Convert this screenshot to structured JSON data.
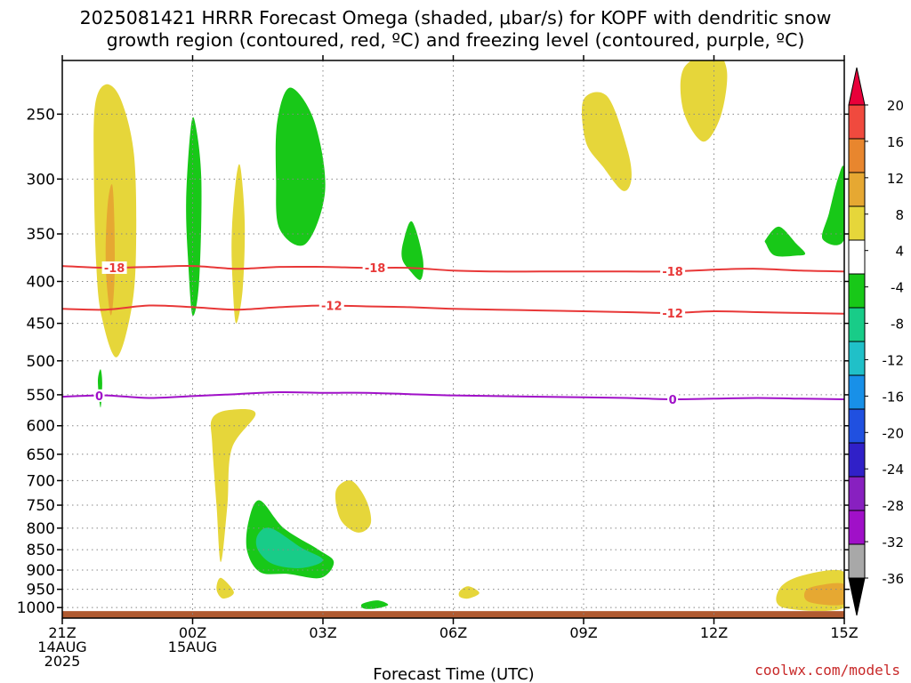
{
  "title_line1": "2025081421 HRRR Forecast Omega (shaded, μbar/s) for KOPF with dendritic snow",
  "title_line2": "growth region (contoured, red, ºC) and freezing level (contoured, purple, ºC)",
  "credit": "coolwx.com/models",
  "chart_data": {
    "type": "contour",
    "xlabel": "Forecast Time (UTC)",
    "ylabel": "",
    "x_range_hours": [
      0,
      18
    ],
    "y_range_mb": [
      215,
      1030
    ],
    "y_scale": "log",
    "grid": true,
    "y_ticks": [
      250,
      300,
      350,
      400,
      450,
      500,
      550,
      600,
      650,
      700,
      750,
      800,
      850,
      900,
      950,
      1000
    ],
    "x_ticks": [
      {
        "hour": 0,
        "lines": [
          "21Z",
          "14AUG",
          "2025"
        ]
      },
      {
        "hour": 3,
        "lines": [
          "00Z",
          "15AUG"
        ]
      },
      {
        "hour": 6,
        "lines": [
          "03Z"
        ]
      },
      {
        "hour": 9,
        "lines": [
          "06Z"
        ]
      },
      {
        "hour": 12,
        "lines": [
          "09Z"
        ]
      },
      {
        "hour": 15,
        "lines": [
          "12Z"
        ]
      },
      {
        "hour": 18,
        "lines": [
          "15Z"
        ]
      }
    ],
    "colorbar": {
      "levels": [
        "20",
        "16",
        "12",
        "8",
        "4",
        "-4",
        "-8",
        "-12",
        "-16",
        "-20",
        "-24",
        "-28",
        "-32",
        "-36"
      ],
      "colors": [
        "#e8003a",
        "#f04a3e",
        "#e8862e",
        "#e6a832",
        "#e6d63a",
        "#ffffff",
        "#18c818",
        "#18cc88",
        "#20c0c8",
        "#1890e8",
        "#2050e0",
        "#3020c8",
        "#8820c0",
        "#a010c8",
        "#a8a8a8",
        "#000000"
      ]
    },
    "omega_regions": [
      {
        "color": "#e6d63a",
        "pts": [
          [
            0.75,
            245
          ],
          [
            1.0,
            230
          ],
          [
            1.35,
            240
          ],
          [
            1.65,
            280
          ],
          [
            1.7,
            360
          ],
          [
            1.6,
            430
          ],
          [
            1.25,
            495
          ],
          [
            0.9,
            440
          ],
          [
            0.78,
            380
          ],
          [
            0.73,
            300
          ]
        ]
      },
      {
        "color": "#e6a832",
        "pts": [
          [
            1.05,
            320
          ],
          [
            1.15,
            305
          ],
          [
            1.2,
            340
          ],
          [
            1.2,
            400
          ],
          [
            1.12,
            440
          ],
          [
            1.02,
            400
          ],
          [
            1.0,
            360
          ]
        ]
      },
      {
        "color": "#18c818",
        "pts": [
          [
            0.82,
            530
          ],
          [
            0.88,
            512
          ],
          [
            0.92,
            532
          ],
          [
            0.88,
            570
          ]
        ]
      },
      {
        "color": "#18c818",
        "pts": [
          [
            2.95,
            262
          ],
          [
            3.05,
            255
          ],
          [
            3.2,
            300
          ],
          [
            3.15,
            400
          ],
          [
            3.0,
            440
          ],
          [
            2.9,
            380
          ],
          [
            2.85,
            320
          ]
        ]
      },
      {
        "color": "#e6d63a",
        "pts": [
          [
            4.0,
            300
          ],
          [
            4.1,
            290
          ],
          [
            4.2,
            340
          ],
          [
            4.15,
            410
          ],
          [
            4.0,
            450
          ],
          [
            3.92,
            400
          ],
          [
            3.9,
            350
          ]
        ]
      },
      {
        "color": "#18c818",
        "pts": [
          [
            4.95,
            255
          ],
          [
            5.25,
            232
          ],
          [
            5.8,
            255
          ],
          [
            6.05,
            310
          ],
          [
            5.6,
            360
          ],
          [
            5.0,
            345
          ],
          [
            4.92,
            300
          ]
        ]
      },
      {
        "color": "#18c818",
        "pts": [
          [
            7.85,
            358
          ],
          [
            8.05,
            338
          ],
          [
            8.3,
            375
          ],
          [
            8.25,
            398
          ],
          [
            8.0,
            388
          ],
          [
            7.82,
            375
          ]
        ]
      },
      {
        "color": "#e6d63a",
        "pts": [
          [
            12.0,
            240
          ],
          [
            12.55,
            238
          ],
          [
            13.0,
            275
          ],
          [
            13.1,
            300
          ],
          [
            12.9,
            310
          ],
          [
            12.45,
            290
          ],
          [
            12.05,
            270
          ]
        ]
      },
      {
        "color": "#e6d63a",
        "pts": [
          [
            14.3,
            220
          ],
          [
            15.0,
            210
          ],
          [
            15.3,
            222
          ],
          [
            15.15,
            252
          ],
          [
            14.75,
            270
          ],
          [
            14.3,
            248
          ]
        ]
      },
      {
        "color": "#18c818",
        "pts": [
          [
            16.2,
            355
          ],
          [
            16.5,
            343
          ],
          [
            16.9,
            360
          ],
          [
            17.1,
            370
          ],
          [
            16.9,
            372
          ],
          [
            16.4,
            372
          ],
          [
            16.2,
            360
          ]
        ]
      },
      {
        "color": "#18c818",
        "pts": [
          [
            17.5,
            355
          ],
          [
            17.65,
            330
          ],
          [
            17.85,
            300
          ],
          [
            18.0,
            292
          ],
          [
            18.0,
            355
          ]
        ]
      },
      {
        "color": "#e6d63a",
        "pts": [
          [
            3.45,
            588
          ],
          [
            3.85,
            574
          ],
          [
            4.45,
            580
          ],
          [
            3.9,
            640
          ],
          [
            3.8,
            750
          ],
          [
            3.65,
            880
          ],
          [
            3.55,
            750
          ],
          [
            3.45,
            630
          ]
        ]
      },
      {
        "color": "#e6d63a",
        "pts": [
          [
            3.55,
            950
          ],
          [
            3.65,
            920
          ],
          [
            3.95,
            958
          ],
          [
            3.7,
            975
          ]
        ]
      },
      {
        "color": "#e6d63a",
        "pts": [
          [
            6.3,
            720
          ],
          [
            6.65,
            700
          ],
          [
            7.0,
            740
          ],
          [
            7.1,
            790
          ],
          [
            6.8,
            810
          ],
          [
            6.4,
            780
          ]
        ]
      },
      {
        "color": "#18c818",
        "pts": [
          [
            4.3,
            780
          ],
          [
            4.55,
            740
          ],
          [
            5.1,
            800
          ],
          [
            5.9,
            850
          ],
          [
            6.25,
            880
          ],
          [
            5.95,
            920
          ],
          [
            5.2,
            910
          ],
          [
            4.55,
            905
          ],
          [
            4.25,
            850
          ]
        ]
      },
      {
        "color": "#18cc88",
        "pts": [
          [
            4.5,
            815
          ],
          [
            4.8,
            800
          ],
          [
            5.5,
            845
          ],
          [
            6.0,
            875
          ],
          [
            5.5,
            895
          ],
          [
            4.85,
            885
          ],
          [
            4.5,
            850
          ]
        ]
      },
      {
        "color": "#18c818",
        "pts": [
          [
            6.9,
            990
          ],
          [
            7.25,
            980
          ],
          [
            7.5,
            992
          ],
          [
            7.25,
            1002
          ],
          [
            6.95,
            1003
          ]
        ]
      },
      {
        "color": "#e6d63a",
        "pts": [
          [
            9.15,
            955
          ],
          [
            9.35,
            942
          ],
          [
            9.6,
            960
          ],
          [
            9.35,
            975
          ],
          [
            9.15,
            970
          ]
        ]
      },
      {
        "color": "#e6d63a",
        "pts": [
          [
            16.5,
            950
          ],
          [
            17.0,
            915
          ],
          [
            18.0,
            905
          ],
          [
            18.0,
            1000
          ],
          [
            16.6,
            1000
          ]
        ]
      },
      {
        "color": "#e6a832",
        "pts": [
          [
            17.1,
            955
          ],
          [
            17.4,
            940
          ],
          [
            18.0,
            937
          ],
          [
            18.0,
            990
          ],
          [
            17.2,
            985
          ]
        ]
      }
    ],
    "contours": [
      {
        "name": "-18",
        "color": "#e83838",
        "labels": [
          [
            1.2,
            "-18"
          ],
          [
            7.2,
            "-18"
          ],
          [
            14.05,
            "-18"
          ]
        ],
        "pts": [
          [
            0,
            383
          ],
          [
            1,
            385
          ],
          [
            2,
            384
          ],
          [
            3,
            383
          ],
          [
            4,
            386
          ],
          [
            5,
            384
          ],
          [
            6,
            384
          ],
          [
            7,
            385
          ],
          [
            8,
            385
          ],
          [
            9,
            388
          ],
          [
            10,
            389
          ],
          [
            11,
            389
          ],
          [
            12,
            389
          ],
          [
            13,
            389
          ],
          [
            14,
            389
          ],
          [
            15,
            387
          ],
          [
            16,
            386
          ],
          [
            17,
            388
          ],
          [
            18,
            389
          ]
        ]
      },
      {
        "name": "-12",
        "color": "#e83838",
        "labels": [
          [
            6.2,
            "-12"
          ],
          [
            14.05,
            "-12"
          ]
        ],
        "pts": [
          [
            0,
            432
          ],
          [
            1,
            433
          ],
          [
            2,
            428
          ],
          [
            3,
            430
          ],
          [
            4,
            433
          ],
          [
            5,
            430
          ],
          [
            6,
            428
          ],
          [
            7,
            429
          ],
          [
            8,
            430
          ],
          [
            9,
            432
          ],
          [
            10,
            433
          ],
          [
            11,
            434
          ],
          [
            12,
            435
          ],
          [
            13,
            436
          ],
          [
            14,
            437
          ],
          [
            15,
            435
          ],
          [
            16,
            436
          ],
          [
            17,
            437
          ],
          [
            18,
            438
          ]
        ]
      },
      {
        "name": "0",
        "color": "#a010c8",
        "labels": [
          [
            0.85,
            "0"
          ],
          [
            14.05,
            "0"
          ]
        ],
        "pts": [
          [
            0,
            553
          ],
          [
            1,
            551
          ],
          [
            2,
            555
          ],
          [
            3,
            552
          ],
          [
            4,
            549
          ],
          [
            5,
            546
          ],
          [
            6,
            547
          ],
          [
            7,
            547
          ],
          [
            8,
            549
          ],
          [
            9,
            551
          ],
          [
            10,
            552
          ],
          [
            11,
            553
          ],
          [
            12,
            554
          ],
          [
            13,
            555
          ],
          [
            14,
            557
          ],
          [
            15,
            556
          ],
          [
            16,
            555
          ],
          [
            17,
            556
          ],
          [
            18,
            557
          ]
        ]
      }
    ],
    "ground": {
      "color": "#b05a30",
      "top_mb": 1010
    }
  }
}
